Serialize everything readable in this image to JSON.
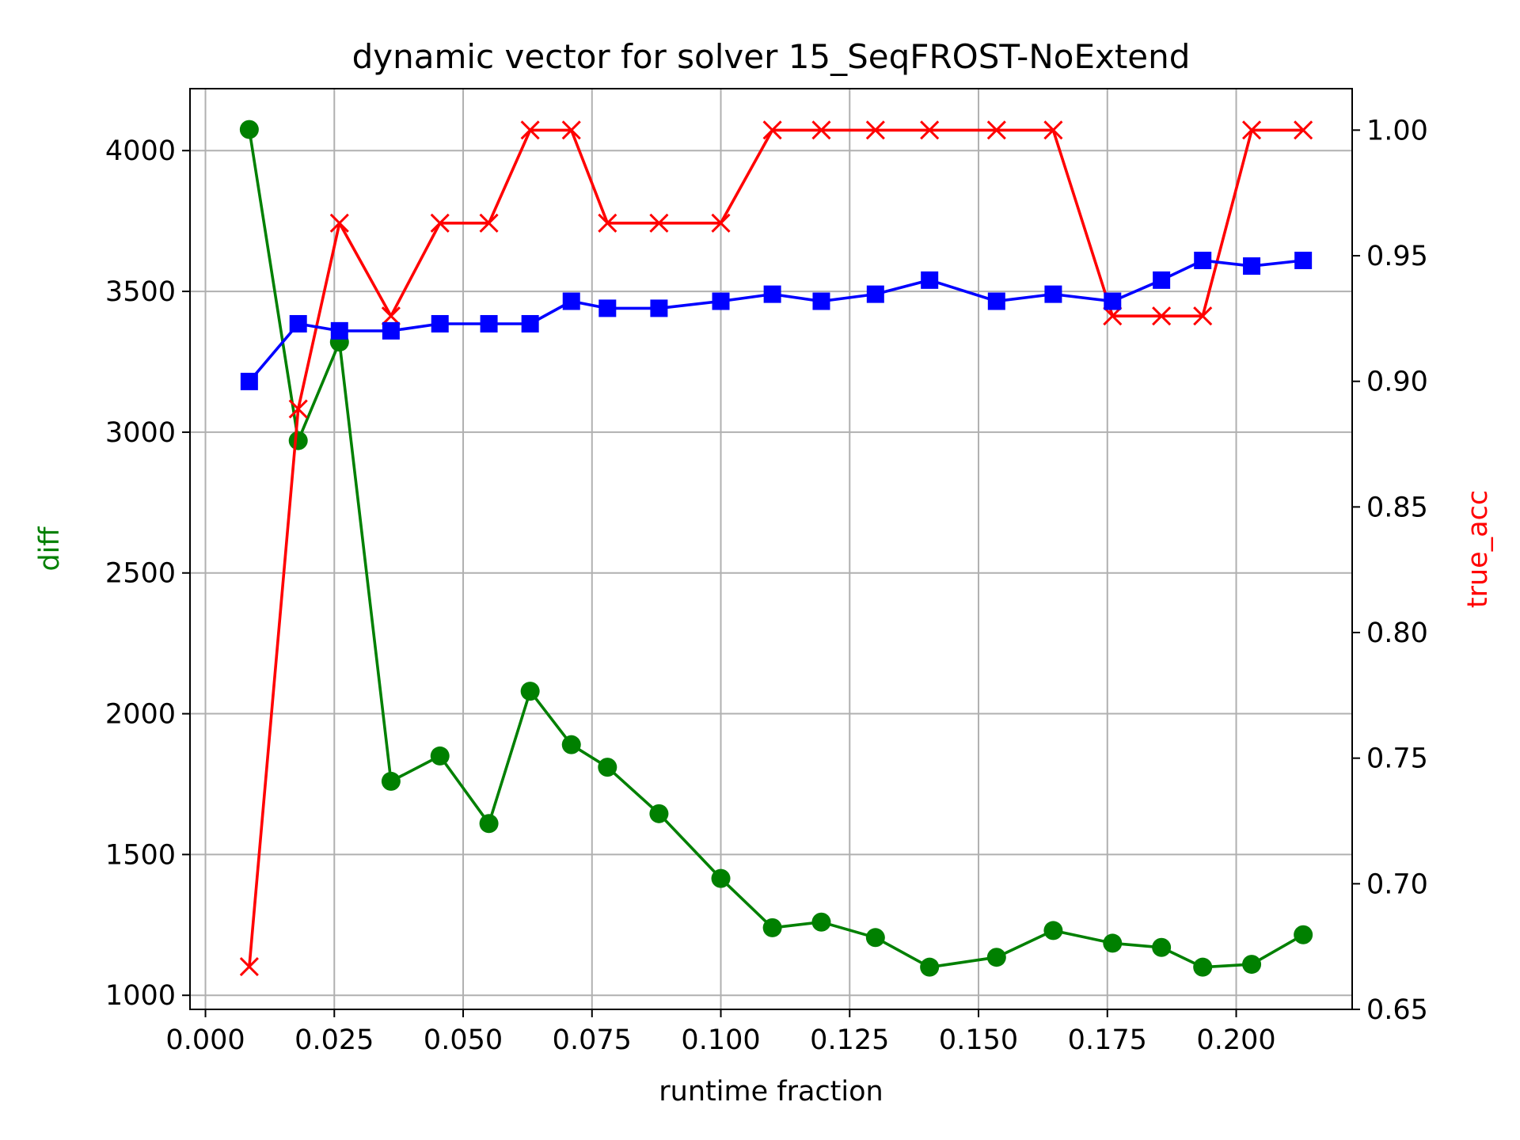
{
  "chart_data": {
    "type": "line",
    "title": "dynamic vector for solver 15_SeqFROST-NoExtend",
    "xlabel": "runtime fraction",
    "ylabel_left": "diff",
    "ylabel_right": "true_acc",
    "xlim": [
      -0.003,
      0.2225
    ],
    "ylim_left": [
      950,
      4220
    ],
    "ylim_right": [
      0.65,
      1.0165
    ],
    "x_ticks": [
      0.0,
      0.025,
      0.05,
      0.075,
      0.1,
      0.125,
      0.15,
      0.175,
      0.2
    ],
    "x_tick_labels": [
      "0.000",
      "0.025",
      "0.050",
      "0.075",
      "0.100",
      "0.125",
      "0.150",
      "0.175",
      "0.200"
    ],
    "y_left_ticks": [
      1000,
      1500,
      2000,
      2500,
      3000,
      3500,
      4000
    ],
    "y_left_tick_labels": [
      "1000",
      "1500",
      "2000",
      "2500",
      "3000",
      "3500",
      "4000"
    ],
    "y_right_ticks": [
      0.65,
      0.7,
      0.75,
      0.8,
      0.85,
      0.9,
      0.95,
      1.0
    ],
    "y_right_tick_labels": [
      "0.65",
      "0.70",
      "0.75",
      "0.80",
      "0.85",
      "0.90",
      "0.95",
      "1.00"
    ],
    "grid": true,
    "x": [
      0.0085,
      0.018,
      0.026,
      0.036,
      0.0455,
      0.055,
      0.063,
      0.071,
      0.078,
      0.088,
      0.1,
      0.11,
      0.1195,
      0.13,
      0.1405,
      0.1535,
      0.1645,
      0.176,
      0.1855,
      0.1935,
      0.203,
      0.213
    ],
    "series": [
      {
        "axis": "left",
        "color": "#008000",
        "marker": "circle",
        "values": [
          4075,
          2970,
          3320,
          1760,
          1850,
          1610,
          2080,
          1890,
          1810,
          1645,
          1415,
          1240,
          1260,
          1205,
          1100,
          1135,
          1230,
          1185,
          1170,
          1100,
          1110,
          1215
        ]
      },
      {
        "axis": "right",
        "color": "#ff0000",
        "marker": "x",
        "values": [
          0.667,
          0.889,
          0.963,
          0.926,
          0.963,
          0.963,
          1.0,
          1.0,
          0.963,
          0.963,
          0.963,
          1.0,
          1.0,
          1.0,
          1.0,
          1.0,
          1.0,
          0.926,
          0.926,
          0.926,
          1.0,
          1.0
        ]
      },
      {
        "axis": "left",
        "color": "#0000ff",
        "marker": "square",
        "values": [
          3180,
          3385,
          3360,
          3360,
          3385,
          3385,
          3385,
          3465,
          3440,
          3440,
          3465,
          3490,
          3465,
          3490,
          3540,
          3465,
          3490,
          3465,
          3540,
          3610,
          3590,
          3610
        ]
      }
    ]
  }
}
